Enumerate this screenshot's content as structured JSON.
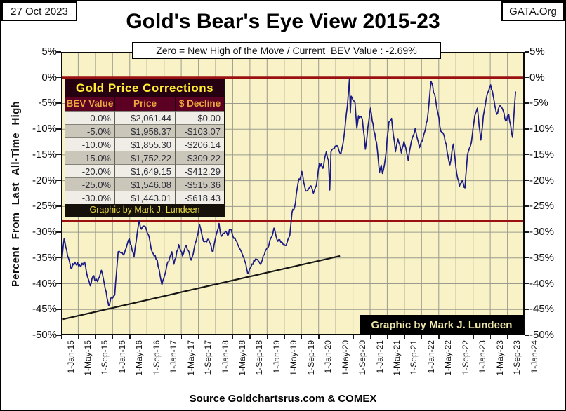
{
  "header": {
    "report_date": "27 Oct 2023",
    "org": "GATA.Org",
    "title": "Gold's Bear's Eye View 2015-23",
    "subtitle": "Zero = New High of the Move / Current  BEV Value : -2.69%"
  },
  "axis": {
    "y_title": "Percent From Last All-Time High"
  },
  "table": {
    "title": "Gold Price Corrections",
    "columns": [
      "BEV Value",
      "Price",
      "$ Decline"
    ],
    "rows": [
      [
        "0.0%",
        "$2,061.44",
        "$0.00"
      ],
      [
        "-5.0%",
        "$1,958.37",
        "-$103.07"
      ],
      [
        "-10.0%",
        "$1,855.30",
        "-$206.14"
      ],
      [
        "-15.0%",
        "$1,752.22",
        "-$309.22"
      ],
      [
        "-20.0%",
        "$1,649.15",
        "-$412.29"
      ],
      [
        "-25.0%",
        "$1,546.08",
        "-$515.36"
      ],
      [
        "-30.0%",
        "$1,443.01",
        "-$618.43"
      ]
    ],
    "credit": "Graphic by Mark J. Lundeen"
  },
  "footer": {
    "credit": "Graphic by Mark J. Lundeen",
    "source": "Source Goldchartsrus.com & COMEX"
  },
  "colors": {
    "plot_bg": "#f8f2c6",
    "grid": "#9b9b8d",
    "series": "#1a1a85",
    "reference": "#9b1111",
    "trend": "#161616",
    "table_title_bg": "#250011",
    "table_header_bg": "#5c0023",
    "table_header_text": "#eaa73c",
    "credit_text": "#efe8ad",
    "accent_yellow": "#ffee33"
  },
  "chart_data": {
    "type": "line",
    "title": "Gold's Bear's Eye View 2015-23",
    "ylabel": "Percent From Last All-Time High",
    "ylim": [
      -50,
      5
    ],
    "grid": true,
    "current_bev": "-2.69%",
    "y_ticks": [
      {
        "label": "5%",
        "value": 5
      },
      {
        "label": "0%",
        "value": 0
      },
      {
        "label": "-5%",
        "value": -5
      },
      {
        "label": "-10%",
        "value": -10
      },
      {
        "label": "-15%",
        "value": -15
      },
      {
        "label": "-20%",
        "value": -20
      },
      {
        "label": "-25%",
        "value": -25
      },
      {
        "label": "-30%",
        "value": -30
      },
      {
        "label": "-35%",
        "value": -35
      },
      {
        "label": "-40%",
        "value": -40
      },
      {
        "label": "-45%",
        "value": -45
      },
      {
        "label": "-50%",
        "value": -50
      }
    ],
    "x_ticks": [
      "1-Jan-15",
      "1-May-15",
      "1-Sep-15",
      "1-Jan-16",
      "1-May-16",
      "1-Sep-16",
      "1-Jan-17",
      "1-May-17",
      "1-Sep-17",
      "1-Jan-18",
      "1-May-18",
      "1-Sep-18",
      "1-Jan-19",
      "1-May-19",
      "1-Sep-19",
      "1-Jan-20",
      "1-May-20",
      "1-Sep-20",
      "1-Jan-21",
      "1-May-21",
      "1-Sep-21",
      "1-Jan-22",
      "1-May-22",
      "1-Sep-22",
      "1-Jan-23",
      "1-May-23",
      "1-Sep-23",
      "1-Jan-24"
    ],
    "x_tick_interval_months": 4,
    "x_range_months": [
      0,
      108
    ],
    "reference_lines": [
      {
        "value": 0
      },
      {
        "value": -27.8
      }
    ],
    "trendline": {
      "x1_months": 0.4,
      "y1_pct": -46.9,
      "x2_months": 65,
      "y2_pct": -34.6
    },
    "series": [
      {
        "name": "Gold BEV (% from last all-time high), Jan 2015 - Oct 2023",
        "points": [
          [
            0,
            -36.6
          ],
          [
            0.7,
            -31.3
          ],
          [
            1.5,
            -34.6
          ],
          [
            2.3,
            -37.0
          ],
          [
            3.2,
            -35.8
          ],
          [
            4.5,
            -36.6
          ],
          [
            5.5,
            -35.8
          ],
          [
            6.3,
            -39.0
          ],
          [
            6.8,
            -40.4
          ],
          [
            7.4,
            -38.6
          ],
          [
            8.5,
            -39.6
          ],
          [
            9.4,
            -37.4
          ],
          [
            10.5,
            -41.6
          ],
          [
            11.1,
            -44.3
          ],
          [
            11.8,
            -42.6
          ],
          [
            12.5,
            -42.2
          ],
          [
            13.3,
            -33.8
          ],
          [
            14.5,
            -34.4
          ],
          [
            15.2,
            -33.0
          ],
          [
            15.9,
            -31.3
          ],
          [
            17.0,
            -34.8
          ],
          [
            17.5,
            -31.8
          ],
          [
            18.2,
            -27.8
          ],
          [
            18.7,
            -29.4
          ],
          [
            19.5,
            -28.8
          ],
          [
            20.3,
            -30.4
          ],
          [
            21.2,
            -33.8
          ],
          [
            22.4,
            -35.4
          ],
          [
            23.5,
            -40.2
          ],
          [
            23.9,
            -39.0
          ],
          [
            24.6,
            -36.6
          ],
          [
            25.8,
            -33.8
          ],
          [
            26.3,
            -36.2
          ],
          [
            27.4,
            -32.4
          ],
          [
            28.3,
            -34.6
          ],
          [
            29.2,
            -32.6
          ],
          [
            30.3,
            -35.4
          ],
          [
            31.5,
            -31.6
          ],
          [
            32.3,
            -28.6
          ],
          [
            33.2,
            -31.8
          ],
          [
            34.4,
            -31.4
          ],
          [
            35.4,
            -33.8
          ],
          [
            35.9,
            -31.4
          ],
          [
            36.8,
            -28.3
          ],
          [
            37.3,
            -30.8
          ],
          [
            38.3,
            -29.8
          ],
          [
            38.8,
            -30.6
          ],
          [
            39.4,
            -29.4
          ],
          [
            40.7,
            -31.6
          ],
          [
            41.8,
            -33.4
          ],
          [
            42.8,
            -35.6
          ],
          [
            43.5,
            -38.0
          ],
          [
            44.3,
            -36.6
          ],
          [
            45.3,
            -35.2
          ],
          [
            46.4,
            -36.2
          ],
          [
            47.6,
            -33.6
          ],
          [
            48.4,
            -32.6
          ],
          [
            49.6,
            -29.2
          ],
          [
            50.3,
            -31.4
          ],
          [
            51.4,
            -31.9
          ],
          [
            52.4,
            -32.6
          ],
          [
            53.3,
            -30.6
          ],
          [
            53.8,
            -26.2
          ],
          [
            54.4,
            -25.2
          ],
          [
            55.2,
            -20.6
          ],
          [
            56.1,
            -18.2
          ],
          [
            57.0,
            -22.0
          ],
          [
            58.2,
            -21.0
          ],
          [
            58.8,
            -22.4
          ],
          [
            59.5,
            -20.9
          ],
          [
            60.2,
            -16.6
          ],
          [
            61.0,
            -17.6
          ],
          [
            61.8,
            -14.4
          ],
          [
            62.3,
            -16.0
          ],
          [
            62.6,
            -21.8
          ],
          [
            62.9,
            -14.4
          ],
          [
            63.4,
            -13.8
          ],
          [
            64.3,
            -13.2
          ],
          [
            65.2,
            -14.8
          ],
          [
            65.9,
            -11.6
          ],
          [
            66.7,
            -5.6
          ],
          [
            67.2,
            -0.15
          ],
          [
            67.4,
            -6.8
          ],
          [
            67.6,
            -3.6
          ],
          [
            68.5,
            -4.9
          ],
          [
            68.9,
            -9.8
          ],
          [
            69.3,
            -7.4
          ],
          [
            70.2,
            -8.1
          ],
          [
            70.9,
            -13.9
          ],
          [
            71.5,
            -9.6
          ],
          [
            72.1,
            -5.9
          ],
          [
            72.9,
            -10.4
          ],
          [
            73.5,
            -12.6
          ],
          [
            74.2,
            -18.4
          ],
          [
            74.6,
            -17.0
          ],
          [
            74.9,
            -18.6
          ],
          [
            75.6,
            -15.4
          ],
          [
            76.4,
            -8.6
          ],
          [
            77.0,
            -7.9
          ],
          [
            77.9,
            -14.4
          ],
          [
            78.5,
            -11.9
          ],
          [
            79.3,
            -14.6
          ],
          [
            79.9,
            -12.4
          ],
          [
            80.9,
            -16.1
          ],
          [
            81.4,
            -13.4
          ],
          [
            82.5,
            -9.9
          ],
          [
            83.5,
            -13.6
          ],
          [
            84.5,
            -11.1
          ],
          [
            85.3,
            -8.4
          ],
          [
            86.2,
            -0.7
          ],
          [
            87.2,
            -3.9
          ],
          [
            88.5,
            -10.4
          ],
          [
            89.3,
            -11.4
          ],
          [
            90.6,
            -16.9
          ],
          [
            91.4,
            -12.9
          ],
          [
            92.0,
            -17.4
          ],
          [
            92.8,
            -21.1
          ],
          [
            93.5,
            -19.9
          ],
          [
            94.1,
            -21.4
          ],
          [
            94.7,
            -14.9
          ],
          [
            95.6,
            -12.6
          ],
          [
            96.4,
            -7.4
          ],
          [
            97.0,
            -5.9
          ],
          [
            97.8,
            -12.1
          ],
          [
            98.4,
            -7.4
          ],
          [
            99.4,
            -2.9
          ],
          [
            100.1,
            -1.4
          ],
          [
            100.7,
            -3.6
          ],
          [
            101.5,
            -7.1
          ],
          [
            102.3,
            -5.4
          ],
          [
            103.2,
            -6.9
          ],
          [
            103.6,
            -8.4
          ],
          [
            104.3,
            -7.1
          ],
          [
            105.2,
            -11.6
          ],
          [
            105.9,
            -2.69
          ]
        ]
      }
    ]
  }
}
